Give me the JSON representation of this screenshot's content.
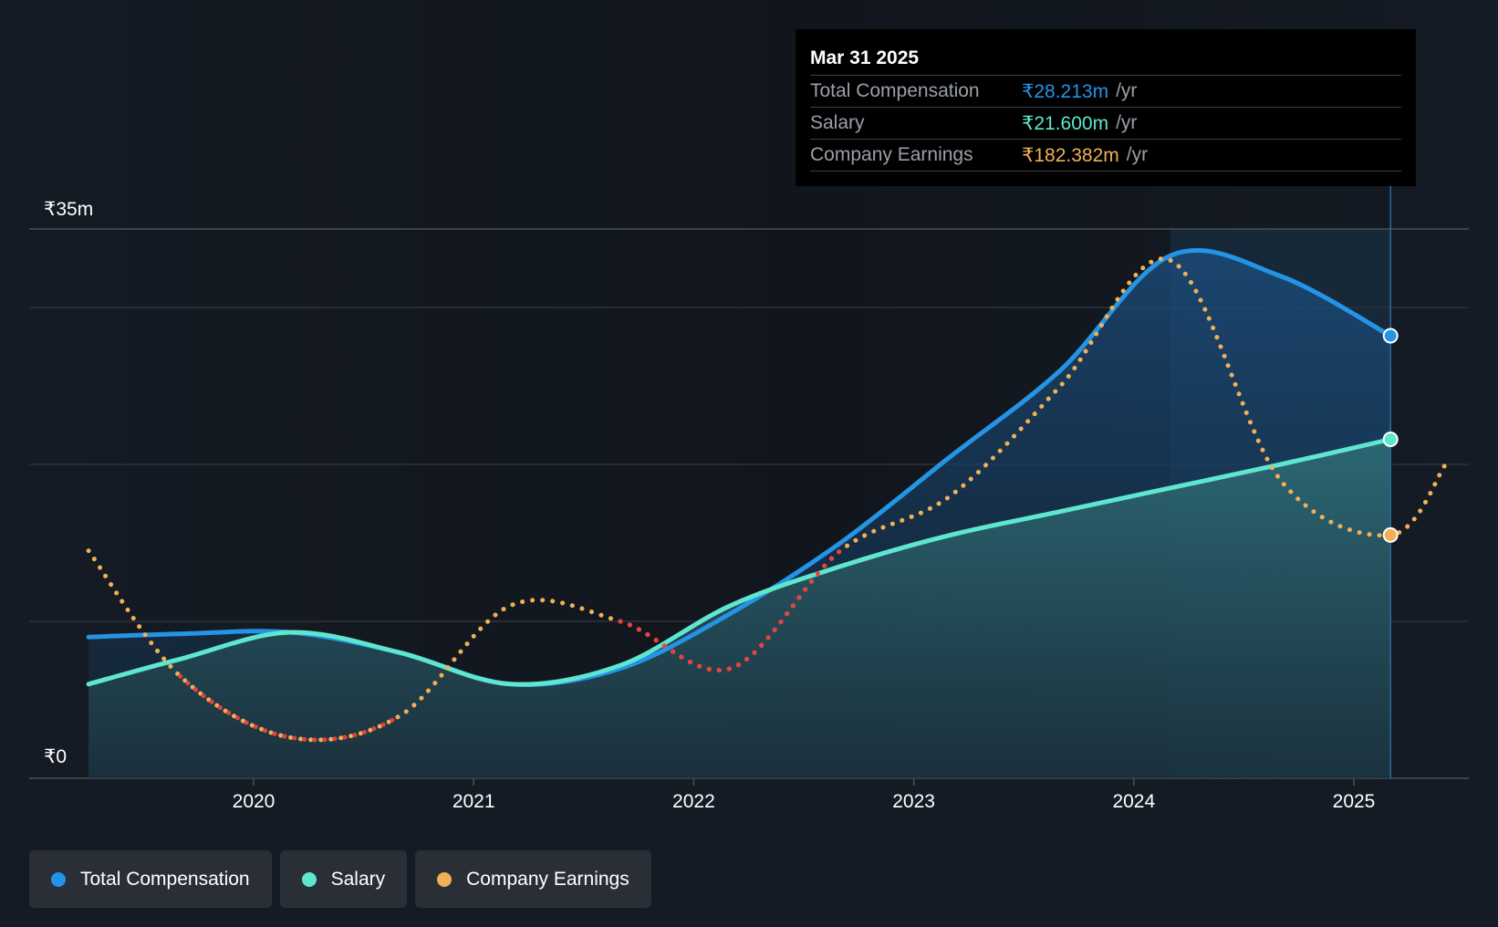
{
  "chart_data": {
    "type": "line",
    "x_ticks": [
      "2020",
      "2021",
      "2022",
      "2023",
      "2024",
      "2025"
    ],
    "y_labels": {
      "top": "₹35m",
      "bottom": "₹0"
    },
    "ylim": [
      0,
      35
    ],
    "grid": true,
    "legend_placement": "bottom-left",
    "series": [
      {
        "name": "Total Compensation",
        "color": "#2394e6",
        "style": "solid",
        "filled": true,
        "points": [
          [
            "2019-04",
            9.0
          ],
          [
            "2019-09",
            9.2
          ],
          [
            "2020-03",
            9.3
          ],
          [
            "2020-09",
            8.0
          ],
          [
            "2021-03",
            6.0
          ],
          [
            "2021-09",
            7.0
          ],
          [
            "2022-03",
            10.5
          ],
          [
            "2022-09",
            15.0
          ],
          [
            "2023-03",
            20.5
          ],
          [
            "2023-09",
            26.0
          ],
          [
            "2024-03",
            33.3
          ],
          [
            "2024-09",
            32.0
          ],
          [
            "2025-03",
            28.2
          ]
        ]
      },
      {
        "name": "Salary",
        "color": "#5ee6cf",
        "style": "solid",
        "filled": true,
        "points": [
          [
            "2019-04",
            6.0
          ],
          [
            "2019-09",
            7.6
          ],
          [
            "2020-03",
            9.3
          ],
          [
            "2020-09",
            8.0
          ],
          [
            "2021-03",
            6.0
          ],
          [
            "2021-09",
            7.2
          ],
          [
            "2022-03",
            11.0
          ],
          [
            "2022-09",
            13.5
          ],
          [
            "2023-03",
            15.5
          ],
          [
            "2023-09",
            17.0
          ],
          [
            "2024-03",
            18.5
          ],
          [
            "2024-09",
            20.0
          ],
          [
            "2025-03",
            21.6
          ]
        ]
      },
      {
        "name": "Company Earnings",
        "color": "#f0b057",
        "negative_color": "#e84040",
        "style": "dotted",
        "filled": false,
        "points": [
          [
            "2019-04",
            14.5
          ],
          [
            "2019-09",
            6.5
          ],
          [
            "2020-03",
            2.6
          ],
          [
            "2020-09",
            4.0
          ],
          [
            "2021-03",
            11.0
          ],
          [
            "2021-09",
            10.0
          ],
          [
            "2022-03",
            7.0
          ],
          [
            "2022-09",
            14.5
          ],
          [
            "2023-03",
            18.0
          ],
          [
            "2023-09",
            25.0
          ],
          [
            "2024-03",
            33.0
          ],
          [
            "2024-09",
            19.0
          ],
          [
            "2025-03",
            15.5
          ],
          [
            "2025-06",
            20.0
          ]
        ]
      }
    ],
    "highlight": {
      "from": "2024-03",
      "to": "2025-03"
    }
  },
  "tooltip": {
    "date": "Mar 31 2025",
    "rows": [
      {
        "label": "Total Compensation",
        "value": "₹28.213m",
        "unit": "/yr",
        "color": "#2394e6"
      },
      {
        "label": "Salary",
        "value": "₹21.600m",
        "unit": "/yr",
        "color": "#5ee6cf"
      },
      {
        "label": "Company Earnings",
        "value": "₹182.382m",
        "unit": "/yr",
        "color": "#f0b057"
      }
    ]
  },
  "legend": [
    {
      "label": "Total Compensation",
      "color": "#2394e6"
    },
    {
      "label": "Salary",
      "color": "#5ee6cf"
    },
    {
      "label": "Company Earnings",
      "color": "#f0b057"
    }
  ]
}
